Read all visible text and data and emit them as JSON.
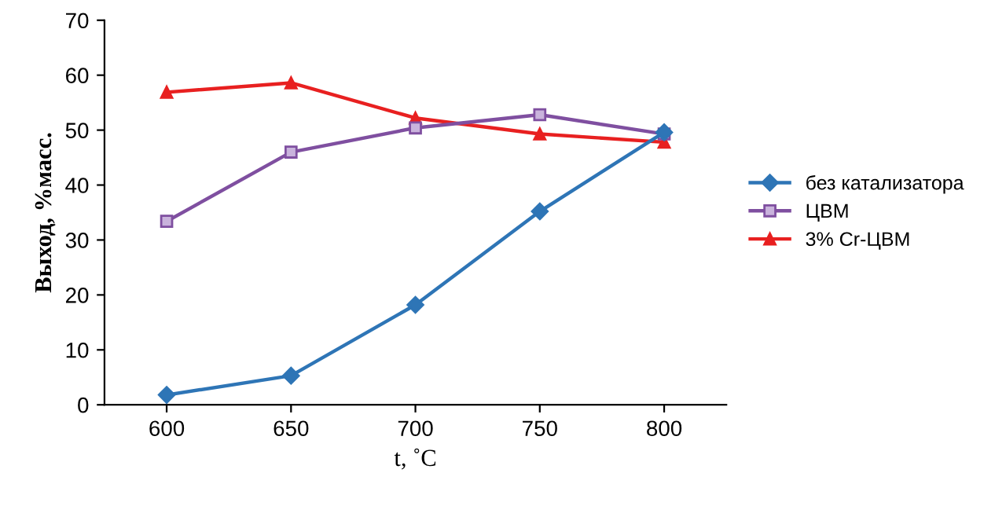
{
  "chart_data": {
    "type": "line",
    "xlabel": "t, ˚C",
    "ylabel": "Выход, %масс.",
    "categories": [
      "600",
      "650",
      "700",
      "750",
      "800"
    ],
    "series": [
      {
        "name": "без катализатора",
        "color": "#2e75b6",
        "marker": "diamond",
        "values": [
          1.8,
          5.3,
          18.2,
          35.2,
          49.6
        ]
      },
      {
        "name": "ЦВМ",
        "color": "#7f4fa0",
        "marker": "square",
        "values": [
          33.4,
          46.0,
          50.4,
          52.8,
          49.3
        ]
      },
      {
        "name": "3% Cr-ЦВМ",
        "color": "#e82020",
        "marker": "triangle",
        "values": [
          56.9,
          58.6,
          52.2,
          49.3,
          47.8
        ]
      }
    ],
    "ylim": [
      0,
      70
    ],
    "yticks": [
      0,
      10,
      20,
      30,
      40,
      50,
      60,
      70
    ],
    "grid": false,
    "legend": "right"
  }
}
